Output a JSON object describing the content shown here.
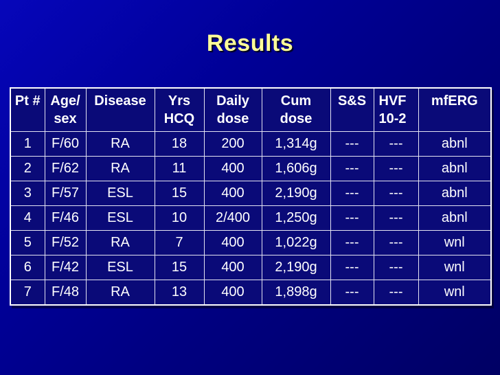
{
  "slide_title": "Results",
  "colors": {
    "title": "#ffff99",
    "cell_bg": "#0a0a78",
    "inner_border": "#e4e4f2",
    "outer_border": "#ffffff",
    "text": "#ffffff"
  },
  "table": {
    "column_headers": [
      {
        "lines": [
          "Pt #"
        ]
      },
      {
        "lines": [
          "Age/",
          "sex"
        ]
      },
      {
        "lines": [
          "Disease"
        ]
      },
      {
        "lines": [
          "Yrs",
          "HCQ"
        ]
      },
      {
        "lines": [
          "Daily",
          "dose"
        ]
      },
      {
        "lines": [
          "Cum",
          "dose"
        ]
      },
      {
        "lines": [
          "S&S"
        ]
      },
      {
        "lines": [
          "HVF",
          "10-2"
        ]
      },
      {
        "lines": [
          "mfERG"
        ]
      }
    ],
    "rows": [
      [
        "1",
        "F/60",
        "RA",
        "18",
        "200",
        "1,314g",
        "---",
        "---",
        "abnl"
      ],
      [
        "2",
        "F/62",
        "RA",
        "11",
        "400",
        "1,606g",
        "---",
        "---",
        "abnl"
      ],
      [
        "3",
        "F/57",
        "ESL",
        "15",
        "400",
        "2,190g",
        "---",
        "---",
        "abnl"
      ],
      [
        "4",
        "F/46",
        "ESL",
        "10",
        "2/400",
        "1,250g",
        "---",
        "---",
        "abnl"
      ],
      [
        "5",
        "F/52",
        "RA",
        "7",
        "400",
        "1,022g",
        "---",
        "---",
        "wnl"
      ],
      [
        "6",
        "F/42",
        "ESL",
        "15",
        "400",
        "2,190g",
        "---",
        "---",
        "wnl"
      ],
      [
        "7",
        "F/48",
        "RA",
        "13",
        "400",
        "1,898g",
        "---",
        "---",
        "wnl"
      ]
    ]
  }
}
